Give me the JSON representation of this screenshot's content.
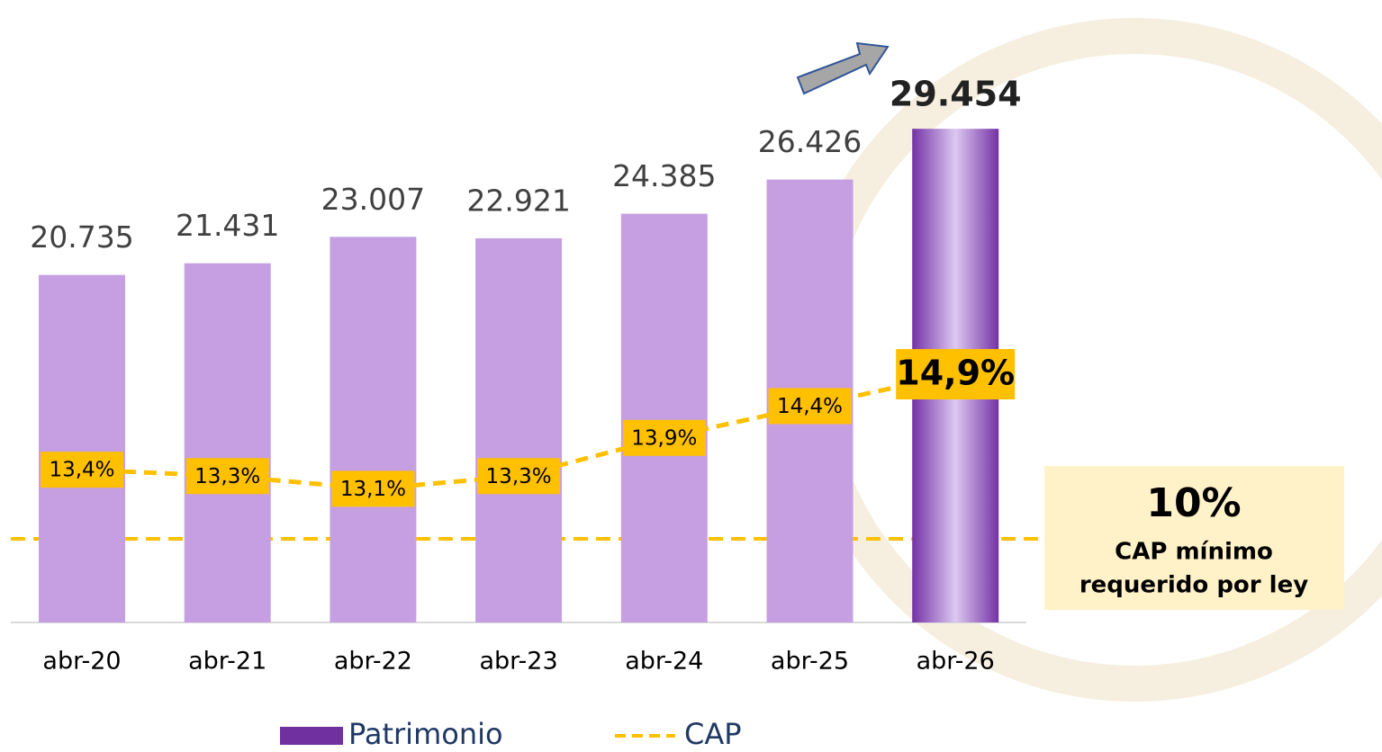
{
  "chart_data": {
    "type": "bar-line",
    "categories": [
      "abr-20",
      "abr-21",
      "abr-22",
      "abr-23",
      "abr-24",
      "abr-25",
      "abr-26"
    ],
    "series": [
      {
        "name": "Patrimonio",
        "type": "bar",
        "color": "#7030a0",
        "bar_colors": [
          "#c69fe3",
          "#c69fe3",
          "#c69fe3",
          "#c69fe3",
          "#c69fe3",
          "#c69fe3",
          "#7432a6"
        ],
        "values": [
          20735,
          21431,
          23007,
          22921,
          24385,
          26426,
          29454
        ],
        "value_labels": [
          "20.735",
          "21.431",
          "23.007",
          "22.921",
          "24.385",
          "26.426",
          "29.454"
        ]
      },
      {
        "name": "CAP",
        "type": "line",
        "axis": "y2",
        "color": "#ffc000",
        "values": [
          13.4,
          13.3,
          13.1,
          13.3,
          13.9,
          14.4,
          14.9
        ],
        "value_labels": [
          "13,4%",
          "13,3%",
          "13,1%",
          "13,3%",
          "13,9%",
          "14,4%",
          "14,9%"
        ]
      }
    ],
    "ylim": [
      0,
      30000
    ],
    "y2lim": [
      11,
      18.9
    ],
    "annotations": [
      "10%",
      "CAP mínimo",
      "requerido por ley"
    ]
  }
}
